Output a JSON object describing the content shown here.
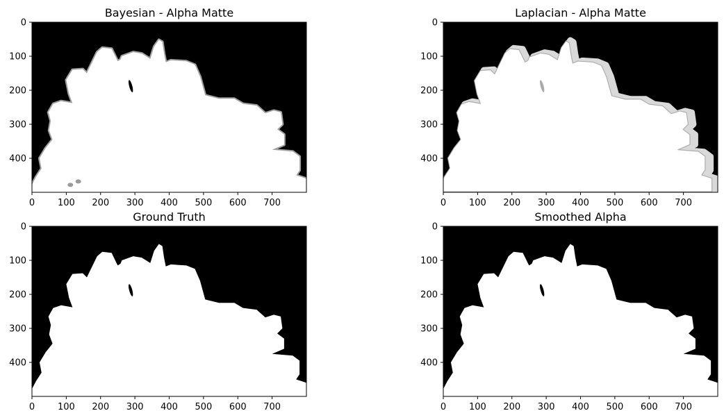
{
  "chart_data": [
    {
      "type": "heatmap",
      "title": "Bayesian - Alpha Matte",
      "xlabel": "",
      "ylabel": "",
      "xlim": [
        0,
        800
      ],
      "ylim": [
        500,
        0
      ],
      "xticks": [
        0,
        100,
        200,
        300,
        400,
        500,
        600,
        700
      ],
      "yticks": [
        0,
        100,
        200,
        300,
        400
      ],
      "colormap": "gray",
      "edge": "soft"
    },
    {
      "type": "heatmap",
      "title": "Laplacian - Alpha Matte",
      "xlabel": "",
      "ylabel": "",
      "xlim": [
        0,
        800
      ],
      "ylim": [
        500,
        0
      ],
      "xticks": [
        0,
        100,
        200,
        300,
        400,
        500,
        600,
        700
      ],
      "yticks": [
        0,
        100,
        200,
        300,
        400
      ],
      "colormap": "gray",
      "edge": "halo"
    },
    {
      "type": "heatmap",
      "title": "Ground Truth",
      "xlabel": "",
      "ylabel": "",
      "xlim": [
        0,
        800
      ],
      "ylim": [
        500,
        0
      ],
      "xticks": [
        0,
        100,
        200,
        300,
        400,
        500,
        600,
        700
      ],
      "yticks": [
        0,
        100,
        200,
        300,
        400
      ],
      "colormap": "gray",
      "edge": "sharp"
    },
    {
      "type": "heatmap",
      "title": "Smoothed Alpha",
      "xlabel": "",
      "ylabel": "",
      "xlim": [
        0,
        800
      ],
      "ylim": [
        500,
        0
      ],
      "xticks": [
        0,
        100,
        200,
        300,
        400,
        500,
        600,
        700
      ],
      "yticks": [
        0,
        100,
        200,
        300,
        400
      ],
      "colormap": "gray",
      "edge": "hard"
    }
  ],
  "colors": {
    "background": "#000000",
    "foreground": "#ffffff",
    "soft_edge": "#bdbdbd",
    "halo": "#d9d9d9",
    "speck": "#9a9a9a"
  }
}
